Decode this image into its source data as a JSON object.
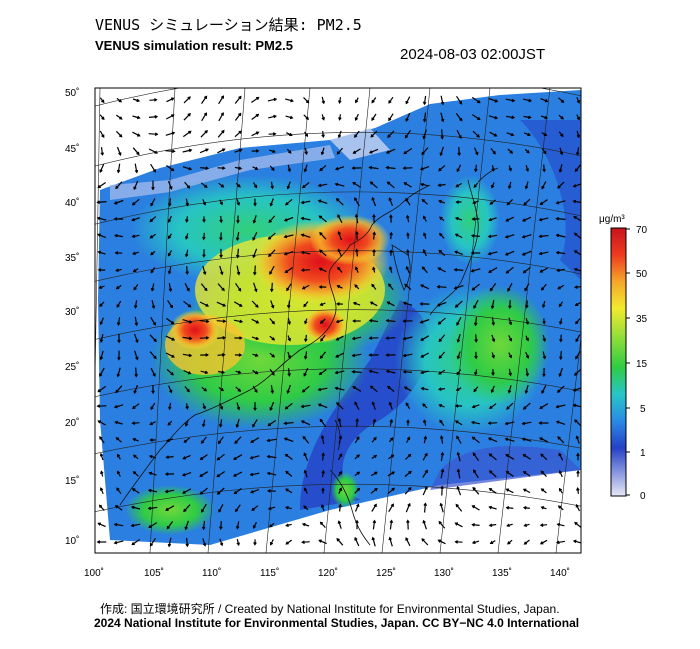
{
  "header": {
    "title_jp": "VENUS シミュレーション結果: PM2.5",
    "title_en": "VENUS simulation result: PM2.5",
    "timestamp": "2024-08-03 02:00JST"
  },
  "map": {
    "lat_ticks": [
      "50˚",
      "45˚",
      "40˚",
      "35˚",
      "30˚",
      "25˚",
      "20˚",
      "15˚",
      "10˚"
    ],
    "lon_ticks": [
      "100˚",
      "105˚",
      "110˚",
      "115˚",
      "120˚",
      "125˚",
      "130˚",
      "135˚",
      "140˚"
    ],
    "lat_range": [
      10,
      50
    ],
    "lon_range": [
      100,
      142
    ]
  },
  "colorbar": {
    "unit": "μg/m³",
    "labels": [
      "70",
      "50",
      "35",
      "15",
      "5",
      "1",
      "0"
    ],
    "colors": [
      "#d7191c",
      "#f05a1e",
      "#f9a02a",
      "#f6e92e",
      "#9be03a",
      "#2fc93c",
      "#27c3c9",
      "#2a7fe0",
      "#2636c4",
      "#d6dcf4"
    ]
  },
  "credits": {
    "line1": "作成: 国立環境研究所 / Created by National Institute for Environmental Studies, Japan.",
    "line2": "2024 National Institute for Environmental Studies, Japan. CC BY−NC 4.0 International"
  }
}
